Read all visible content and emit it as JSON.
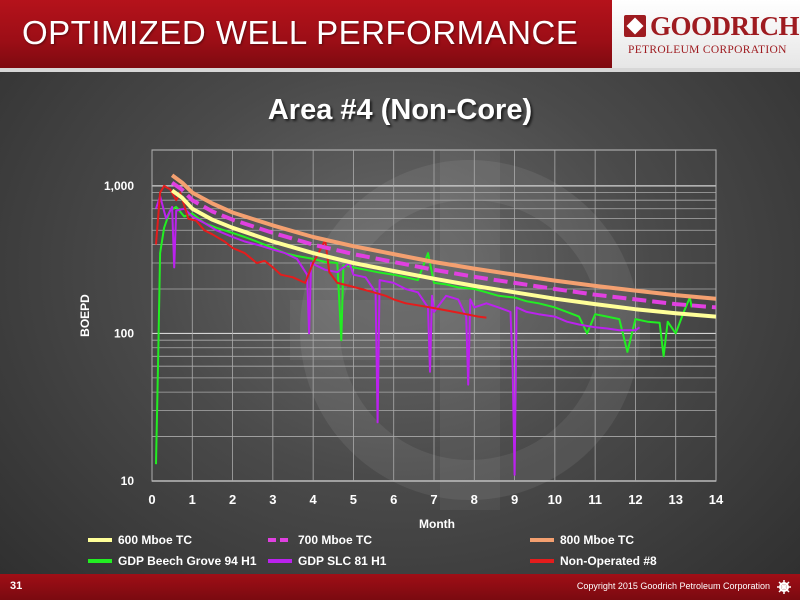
{
  "header": {
    "title": "OPTIMIZED WELL PERFORMANCE",
    "logo_name": "GOODRICH",
    "logo_sub": "PETROLEUM CORPORATION"
  },
  "footer": {
    "page_number": "31",
    "copyright": "Copyright 2015 Goodrich Petroleum Corporation"
  },
  "colors": {
    "header_red": "#b5121b",
    "series_600": "#ffff99",
    "series_700": "#e040e0",
    "series_800": "#f4a070",
    "series_beech": "#22ee22",
    "series_slc": "#bb22ee",
    "series_nonop": "#e51c1c"
  },
  "chart_data": {
    "type": "line",
    "title": "Area #4 (Non-Core)",
    "xlabel": "Month",
    "ylabel": "BOEPD",
    "y_scale": "log",
    "xlim": [
      0,
      14
    ],
    "ylim": [
      10,
      1750
    ],
    "x_ticks": [
      "0",
      "1",
      "2",
      "3",
      "4",
      "5",
      "6",
      "7",
      "8",
      "9",
      "10",
      "11",
      "12",
      "13",
      "14"
    ],
    "y_ticks": [
      {
        "value": 10,
        "label": "10"
      },
      {
        "value": 100,
        "label": "100"
      },
      {
        "value": 1000,
        "label": "1,000"
      }
    ],
    "grid": true,
    "legend_position": "bottom",
    "series": [
      {
        "name": "600 Mboe TC",
        "color": "#ffff99",
        "style": "solid",
        "points": [
          [
            0.5,
            930
          ],
          [
            0.75,
            830
          ],
          [
            1,
            700
          ],
          [
            1.5,
            590
          ],
          [
            2,
            520
          ],
          [
            3,
            420
          ],
          [
            4,
            350
          ],
          [
            5,
            300
          ],
          [
            6,
            265
          ],
          [
            7,
            235
          ],
          [
            8,
            210
          ],
          [
            9,
            190
          ],
          [
            10,
            172
          ],
          [
            11,
            158
          ],
          [
            12,
            146
          ],
          [
            13,
            137
          ],
          [
            14,
            130
          ]
        ]
      },
      {
        "name": "700 Mboe TC",
        "color": "#e040e0",
        "style": "dashed",
        "points": [
          [
            0.5,
            1050
          ],
          [
            0.75,
            940
          ],
          [
            1,
            800
          ],
          [
            1.5,
            670
          ],
          [
            2,
            590
          ],
          [
            3,
            480
          ],
          [
            4,
            400
          ],
          [
            5,
            345
          ],
          [
            6,
            305
          ],
          [
            7,
            270
          ],
          [
            8,
            242
          ],
          [
            9,
            220
          ],
          [
            10,
            200
          ],
          [
            11,
            183
          ],
          [
            12,
            170
          ],
          [
            13,
            158
          ],
          [
            14,
            150
          ]
        ]
      },
      {
        "name": "800 Mboe TC",
        "color": "#f4a070",
        "style": "solid",
        "points": [
          [
            0.5,
            1180
          ],
          [
            0.75,
            1050
          ],
          [
            1,
            900
          ],
          [
            1.5,
            760
          ],
          [
            2,
            660
          ],
          [
            3,
            540
          ],
          [
            4,
            450
          ],
          [
            5,
            390
          ],
          [
            6,
            345
          ],
          [
            7,
            305
          ],
          [
            8,
            275
          ],
          [
            9,
            250
          ],
          [
            10,
            228
          ],
          [
            11,
            210
          ],
          [
            12,
            195
          ],
          [
            13,
            182
          ],
          [
            14,
            172
          ]
        ]
      },
      {
        "name": "GDP Beech Grove 94 H1",
        "color": "#22ee22",
        "style": "solid",
        "points": [
          [
            0.1,
            13
          ],
          [
            0.15,
            60
          ],
          [
            0.2,
            350
          ],
          [
            0.3,
            520
          ],
          [
            0.45,
            680
          ],
          [
            0.6,
            720
          ],
          [
            0.8,
            620
          ],
          [
            1,
            650
          ],
          [
            1.3,
            560
          ],
          [
            1.6,
            520
          ],
          [
            2,
            480
          ],
          [
            2.3,
            450
          ],
          [
            2.6,
            420
          ],
          [
            3,
            380
          ],
          [
            3.3,
            350
          ],
          [
            3.6,
            335
          ],
          [
            4,
            320
          ],
          [
            4.3,
            305
          ],
          [
            4.6,
            300
          ],
          [
            4.7,
            90
          ],
          [
            4.75,
            290
          ],
          [
            5,
            280
          ],
          [
            5.3,
            270
          ],
          [
            5.6,
            260
          ],
          [
            6,
            250
          ],
          [
            6.3,
            240
          ],
          [
            6.6,
            230
          ],
          [
            6.85,
            350
          ],
          [
            7,
            220
          ],
          [
            7.3,
            215
          ],
          [
            7.6,
            205
          ],
          [
            8,
            200
          ],
          [
            8.3,
            190
          ],
          [
            8.6,
            180
          ],
          [
            9,
            175
          ],
          [
            9.3,
            165
          ],
          [
            9.6,
            160
          ],
          [
            10,
            150
          ],
          [
            10.3,
            140
          ],
          [
            10.6,
            130
          ],
          [
            10.8,
            100
          ],
          [
            11,
            135
          ],
          [
            11.3,
            130
          ],
          [
            11.6,
            125
          ],
          [
            11.8,
            75
          ],
          [
            12,
            125
          ],
          [
            12.3,
            120
          ],
          [
            12.6,
            118
          ],
          [
            12.7,
            70
          ],
          [
            12.8,
            120
          ],
          [
            13,
            100
          ],
          [
            13.2,
            140
          ],
          [
            13.35,
            175
          ],
          [
            13.4,
            150
          ]
        ]
      },
      {
        "name": "GDP SLC 81 H1",
        "color": "#bb22ee",
        "style": "solid",
        "points": [
          [
            0.1,
            700
          ],
          [
            0.2,
            850
          ],
          [
            0.35,
            600
          ],
          [
            0.5,
            720
          ],
          [
            0.55,
            280
          ],
          [
            0.6,
            680
          ],
          [
            0.8,
            700
          ],
          [
            1,
            620
          ],
          [
            1.3,
            560
          ],
          [
            1.6,
            500
          ],
          [
            2,
            450
          ],
          [
            2.3,
            420
          ],
          [
            2.6,
            400
          ],
          [
            3,
            370
          ],
          [
            3.3,
            350
          ],
          [
            3.6,
            320
          ],
          [
            3.85,
            250
          ],
          [
            3.9,
            100
          ],
          [
            3.95,
            300
          ],
          [
            4.3,
            270
          ],
          [
            4.6,
            260
          ],
          [
            4.9,
            300
          ],
          [
            5,
            250
          ],
          [
            5.3,
            240
          ],
          [
            5.55,
            190
          ],
          [
            5.6,
            25
          ],
          [
            5.65,
            230
          ],
          [
            6,
            220
          ],
          [
            6.3,
            200
          ],
          [
            6.6,
            190
          ],
          [
            6.85,
            150
          ],
          [
            6.9,
            55
          ],
          [
            6.95,
            180
          ],
          [
            7,
            140
          ],
          [
            7.3,
            180
          ],
          [
            7.6,
            170
          ],
          [
            7.8,
            130
          ],
          [
            7.85,
            45
          ],
          [
            7.9,
            170
          ],
          [
            8,
            150
          ],
          [
            8.3,
            160
          ],
          [
            8.6,
            150
          ],
          [
            8.9,
            140
          ],
          [
            8.95,
            60
          ],
          [
            9,
            11
          ],
          [
            9.05,
            150
          ],
          [
            9.3,
            140
          ],
          [
            9.6,
            135
          ],
          [
            10,
            130
          ],
          [
            10.3,
            120
          ],
          [
            10.6,
            115
          ],
          [
            11,
            110
          ],
          [
            11.3,
            108
          ],
          [
            11.6,
            105
          ],
          [
            12,
            105
          ],
          [
            12.1,
            110
          ]
        ]
      },
      {
        "name": "Non-Operated #8",
        "color": "#e51c1c",
        "style": "solid",
        "points": [
          [
            0.1,
            400
          ],
          [
            0.2,
            900
          ],
          [
            0.3,
            1000
          ],
          [
            0.45,
            950
          ],
          [
            0.6,
            800
          ],
          [
            0.7,
            900
          ],
          [
            0.9,
            600
          ],
          [
            1.1,
            580
          ],
          [
            1.3,
            500
          ],
          [
            1.5,
            470
          ],
          [
            1.8,
            420
          ],
          [
            2,
            380
          ],
          [
            2.3,
            350
          ],
          [
            2.6,
            300
          ],
          [
            2.8,
            310
          ],
          [
            3,
            280
          ],
          [
            3.2,
            250
          ],
          [
            3.5,
            240
          ],
          [
            3.8,
            220
          ],
          [
            4,
            300
          ],
          [
            4.2,
            380
          ],
          [
            4.3,
            430
          ],
          [
            4.4,
            260
          ],
          [
            4.6,
            220
          ],
          [
            4.9,
            210
          ],
          [
            5.2,
            200
          ],
          [
            5.5,
            190
          ],
          [
            5.8,
            180
          ],
          [
            6,
            170
          ],
          [
            6.3,
            160
          ],
          [
            6.6,
            155
          ],
          [
            6.9,
            150
          ],
          [
            7.2,
            145
          ],
          [
            7.5,
            140
          ],
          [
            7.8,
            135
          ],
          [
            8.1,
            130
          ],
          [
            8.3,
            128
          ]
        ]
      }
    ]
  }
}
